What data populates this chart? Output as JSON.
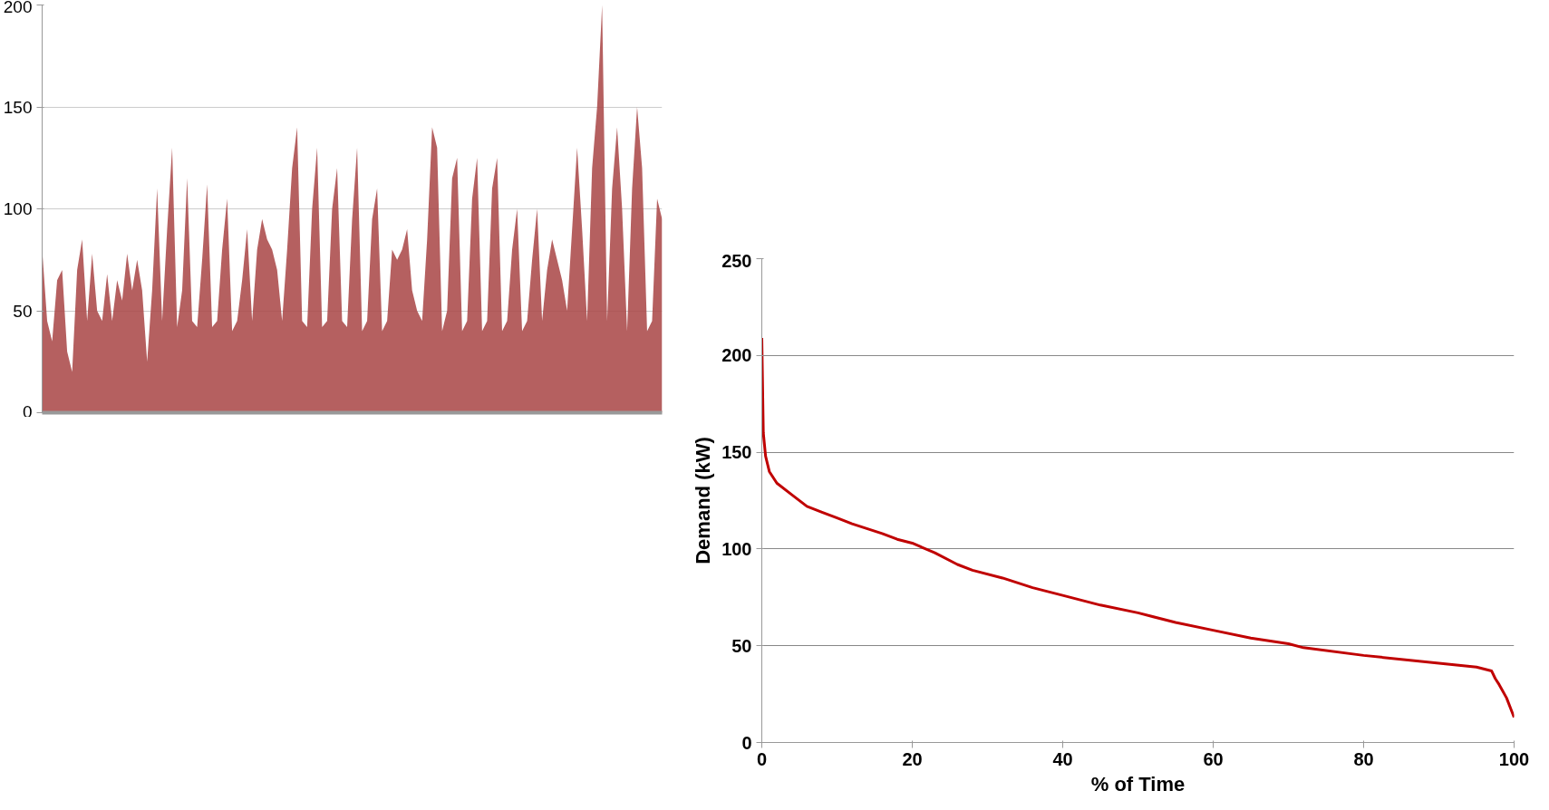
{
  "chart_data": [
    {
      "type": "area",
      "categories": [
        null,
        null,
        null,
        null,
        null,
        null,
        null,
        null,
        null,
        null,
        null,
        null,
        null,
        null,
        null,
        null,
        null,
        null,
        null,
        null,
        null,
        null,
        null,
        null,
        null,
        null,
        null,
        null,
        null,
        null,
        null,
        null,
        null,
        null,
        null,
        null,
        null,
        null,
        null,
        null,
        null,
        null,
        null,
        null,
        null,
        null,
        null,
        null,
        null,
        null,
        null,
        null,
        null,
        null,
        null,
        null,
        null,
        null,
        null,
        null,
        null,
        null,
        null,
        null,
        null,
        null,
        null,
        null,
        null,
        null,
        null,
        null,
        null,
        null,
        null,
        null,
        null,
        null,
        null,
        null,
        null,
        null,
        null,
        null,
        null,
        null,
        null,
        null,
        null,
        null,
        null,
        null,
        null,
        null,
        null,
        null,
        null,
        null,
        null,
        null,
        null,
        null,
        null,
        null,
        null,
        null,
        null,
        null,
        null,
        null,
        null,
        null,
        null,
        null,
        null,
        null,
        null,
        null,
        null,
        null,
        null,
        null,
        null,
        null,
        null
      ],
      "series": [
        {
          "color": "#a84444",
          "values": [
            80,
            45,
            35,
            65,
            70,
            30,
            20,
            70,
            85,
            45,
            78,
            50,
            45,
            68,
            45,
            65,
            55,
            78,
            60,
            75,
            60,
            25,
            60,
            110,
            45,
            90,
            130,
            42,
            60,
            115,
            45,
            42,
            75,
            112,
            42,
            45,
            80,
            105,
            40,
            45,
            65,
            90,
            45,
            80,
            95,
            85,
            80,
            70,
            45,
            80,
            120,
            140,
            45,
            42,
            100,
            130,
            42,
            45,
            100,
            120,
            45,
            42,
            95,
            130,
            40,
            45,
            95,
            110,
            40,
            45,
            80,
            75,
            80,
            90,
            60,
            50,
            45,
            85,
            140,
            130,
            40,
            50,
            115,
            125,
            40,
            45,
            105,
            125,
            40,
            45,
            110,
            125,
            40,
            45,
            80,
            100,
            40,
            45,
            75,
            100,
            45,
            70,
            85,
            75,
            65,
            50,
            90,
            130,
            90,
            45,
            120,
            150,
            200,
            45,
            110,
            140,
            100,
            40,
            110,
            150,
            120,
            40,
            45,
            105,
            95
          ]
        }
      ],
      "ylim": [
        0,
        200
      ],
      "yticks": [
        0,
        50,
        100,
        150,
        200
      ],
      "grid": "y",
      "tick_labels": "y"
    },
    {
      "type": "line",
      "xlabel": "% of Time",
      "ylabel": "Demand (kW)",
      "series": [
        {
          "color": "#c00000",
          "x": [
            0,
            0.2,
            0.5,
            1,
            2,
            4,
            6,
            8,
            10,
            12,
            16,
            18,
            20,
            23,
            26,
            28,
            32,
            36,
            40,
            45,
            50,
            55,
            60,
            65,
            70,
            72,
            80,
            90,
            95,
            97,
            97.5,
            98,
            99,
            100
          ],
          "values": [
            209,
            160,
            148,
            140,
            134,
            128,
            122,
            119,
            116,
            113,
            108,
            105,
            103,
            98,
            92,
            89,
            85,
            80,
            76,
            71,
            67,
            62,
            58,
            54,
            51,
            49,
            45,
            41,
            39,
            37,
            33,
            30,
            23,
            13
          ]
        }
      ],
      "xlim": [
        0,
        100
      ],
      "xticks": [
        0,
        20,
        40,
        60,
        80,
        100
      ],
      "ylim": [
        0,
        250
      ],
      "yticks": [
        0,
        50,
        100,
        150,
        200,
        250
      ],
      "grid": "y"
    }
  ]
}
